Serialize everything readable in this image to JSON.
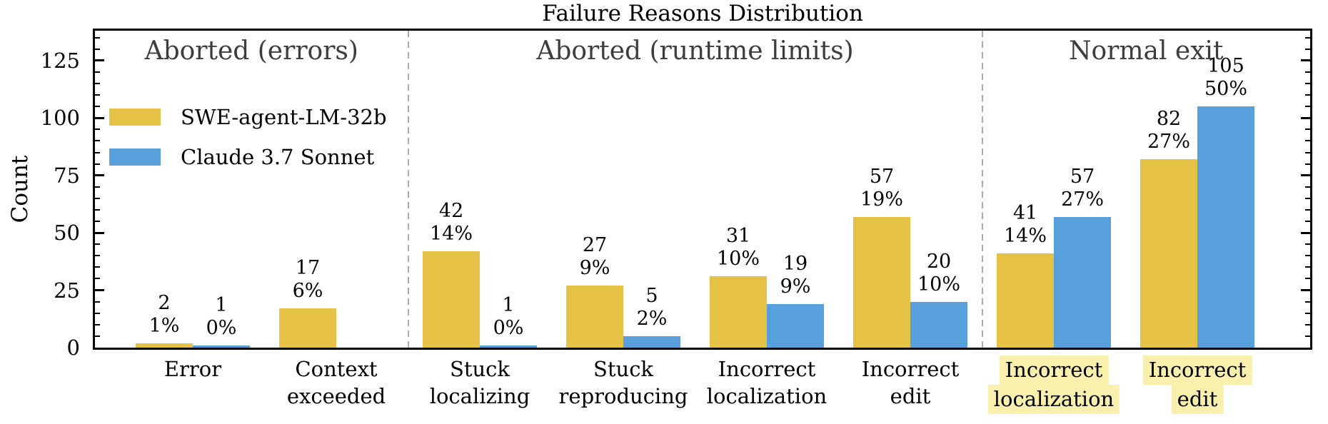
{
  "chart_data": {
    "type": "bar",
    "title": "Failure Reasons Distribution",
    "ylabel": "Count",
    "ylim": [
      0,
      138
    ],
    "yticks": [
      0,
      25,
      50,
      75,
      100,
      125
    ],
    "minor_tick_step": 5,
    "grid": false,
    "legend_position": "upper left inside plot",
    "sections": [
      {
        "label": "Aborted (errors)",
        "category_indexes": [
          0,
          1
        ]
      },
      {
        "label": "Aborted (runtime limits)",
        "category_indexes": [
          2,
          3,
          4,
          5
        ]
      },
      {
        "label": "Normal exit",
        "category_indexes": [
          6,
          7
        ]
      }
    ],
    "categories": [
      {
        "lines": [
          "Error"
        ],
        "highlighted": false
      },
      {
        "lines": [
          "Context",
          "exceeded"
        ],
        "highlighted": false
      },
      {
        "lines": [
          "Stuck",
          "localizing"
        ],
        "highlighted": false
      },
      {
        "lines": [
          "Stuck",
          "reproducing"
        ],
        "highlighted": false
      },
      {
        "lines": [
          "Incorrect",
          "localization"
        ],
        "highlighted": false
      },
      {
        "lines": [
          "Incorrect",
          "edit"
        ],
        "highlighted": false
      },
      {
        "lines": [
          "Incorrect",
          "localization"
        ],
        "highlighted": true
      },
      {
        "lines": [
          "Incorrect",
          "edit"
        ],
        "highlighted": true
      }
    ],
    "series": [
      {
        "name": "SWE-agent-LM-32b",
        "color": "#e5c245",
        "values": [
          2,
          17,
          42,
          27,
          31,
          57,
          41,
          82
        ],
        "percent_labels": [
          "1%",
          "6%",
          "14%",
          "9%",
          "10%",
          "19%",
          "14%",
          "27%"
        ]
      },
      {
        "name": "Claude 3.7 Sonnet",
        "color": "#58a0db",
        "values": [
          1,
          0,
          1,
          5,
          19,
          20,
          57,
          105
        ],
        "percent_labels": [
          "0%",
          "",
          "0%",
          "2%",
          "9%",
          "10%",
          "27%",
          "50%"
        ]
      }
    ]
  },
  "styles": {
    "section_header_color": "#3d3d3d",
    "separator_color": "#ababab",
    "axis_color": "#000000",
    "label_highlight_color": "#f9f0ad",
    "background_color": "#ffffff"
  }
}
